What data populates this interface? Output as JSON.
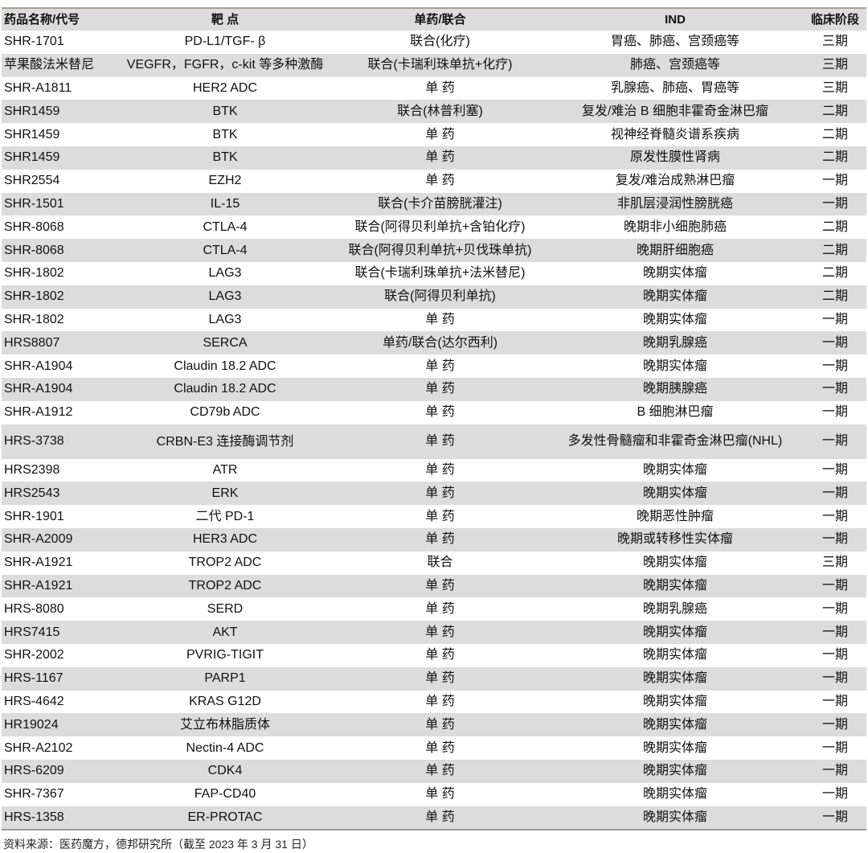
{
  "headers": [
    "药品名称/代号",
    "靶 点",
    "单药/联合",
    "IND",
    "临床阶段"
  ],
  "rows": [
    [
      "SHR-1701",
      "PD-L1/TGF- β",
      "联合(化疗)",
      "胃癌、肺癌、宫颈癌等",
      "三期"
    ],
    [
      "苹果酸法米替尼",
      "VEGFR，FGFR，c-kit 等多种激酶",
      "联合(卡瑞利珠单抗+化疗)",
      "肺癌、宫颈癌等",
      "三期"
    ],
    [
      "SHR-A1811",
      "HER2 ADC",
      "单 药",
      "乳腺癌、肺癌、胃癌等",
      "三期"
    ],
    [
      "SHR1459",
      "BTK",
      "联合(林普利塞)",
      "复发/难治 B 细胞非霍奇金淋巴瘤",
      "二期"
    ],
    [
      "SHR1459",
      "BTK",
      "单 药",
      "视神经脊髓炎谱系疾病",
      "二期"
    ],
    [
      "SHR1459",
      "BTK",
      "单 药",
      "原发性膜性肾病",
      "二期"
    ],
    [
      "SHR2554",
      "EZH2",
      "单 药",
      "复发/难治成熟淋巴瘤",
      "一期"
    ],
    [
      "SHR-1501",
      "IL-15",
      "联合(卡介苗膀胱灌注)",
      "非肌层浸润性膀胱癌",
      "一期"
    ],
    [
      "SHR-8068",
      "CTLA-4",
      "联合(阿得贝利单抗+含铂化疗)",
      "晚期非小细胞肺癌",
      "二期"
    ],
    [
      "SHR-8068",
      "CTLA-4",
      "联合(阿得贝利单抗+贝伐珠单抗)",
      "晚期肝细胞癌",
      "二期"
    ],
    [
      "SHR-1802",
      "LAG3",
      "联合(卡瑞利珠单抗+法米替尼)",
      "晚期实体瘤",
      "二期"
    ],
    [
      "SHR-1802",
      "LAG3",
      "联合(阿得贝利单抗)",
      "晚期实体瘤",
      "二期"
    ],
    [
      "SHR-1802",
      "LAG3",
      "单 药",
      "晚期实体瘤",
      "一期"
    ],
    [
      "HRS8807",
      "SERCA",
      "单药/联合(达尔西利)",
      "晚期乳腺癌",
      "一期"
    ],
    [
      "SHR-A1904",
      "Claudin 18.2 ADC",
      "单 药",
      "晚期实体瘤",
      "一期"
    ],
    [
      "SHR-A1904",
      "Claudin 18.2 ADC",
      "单 药",
      "晚期胰腺癌",
      "一期"
    ],
    [
      "SHR-A1912",
      "CD79b ADC",
      "单 药",
      "B 细胞淋巴瘤",
      "一期"
    ],
    [
      "HRS-3738",
      "CRBN-E3 连接酶调节剂",
      "单 药",
      "多发性骨髓瘤和非霍奇金淋巴瘤(NHL)",
      "一期"
    ],
    [
      "HRS2398",
      "ATR",
      "单 药",
      "晚期实体瘤",
      "一期"
    ],
    [
      "HRS2543",
      "ERK",
      "单 药",
      "晚期实体瘤",
      "一期"
    ],
    [
      "SHR-1901",
      "二代 PD-1",
      "单 药",
      "晚期恶性肿瘤",
      "一期"
    ],
    [
      "SHR-A2009",
      "HER3 ADC",
      "单 药",
      "晚期或转移性实体瘤",
      "一期"
    ],
    [
      "SHR-A1921",
      "TROP2 ADC",
      "联合",
      "晚期实体瘤",
      "三期"
    ],
    [
      "SHR-A1921",
      "TROP2 ADC",
      "单 药",
      "晚期实体瘤",
      "一期"
    ],
    [
      "HRS-8080",
      "SERD",
      "单 药",
      "晚期乳腺癌",
      "一期"
    ],
    [
      "HRS7415",
      "AKT",
      "单 药",
      "晚期实体瘤",
      "一期"
    ],
    [
      "SHR-2002",
      "PVRIG-TIGIT",
      "单 药",
      "晚期实体瘤",
      "一期"
    ],
    [
      "HRS-1167",
      "PARP1",
      "单 药",
      "晚期实体瘤",
      "一期"
    ],
    [
      "HRS-4642",
      "KRAS G12D",
      "单 药",
      "晚期实体瘤",
      "一期"
    ],
    [
      "HR19024",
      "艾立布林脂质体",
      "单 药",
      "晚期实体瘤",
      "一期"
    ],
    [
      "SHR-A2102",
      "Nectin-4 ADC",
      "单 药",
      "晚期实体瘤",
      "一期"
    ],
    [
      "HRS-6209",
      "CDK4",
      "单 药",
      "晚期实体瘤",
      "一期"
    ],
    [
      "SHR-7367",
      "FAP-CD40",
      "单 药",
      "晚期实体瘤",
      "一期"
    ],
    [
      "HRS-1358",
      "ER-PROTAC",
      "单 药",
      "晚期实体瘤",
      "一期"
    ]
  ],
  "source": "资料来源：医药魔方，德邦研究所（截至 2023 年 3 月 31 日）"
}
